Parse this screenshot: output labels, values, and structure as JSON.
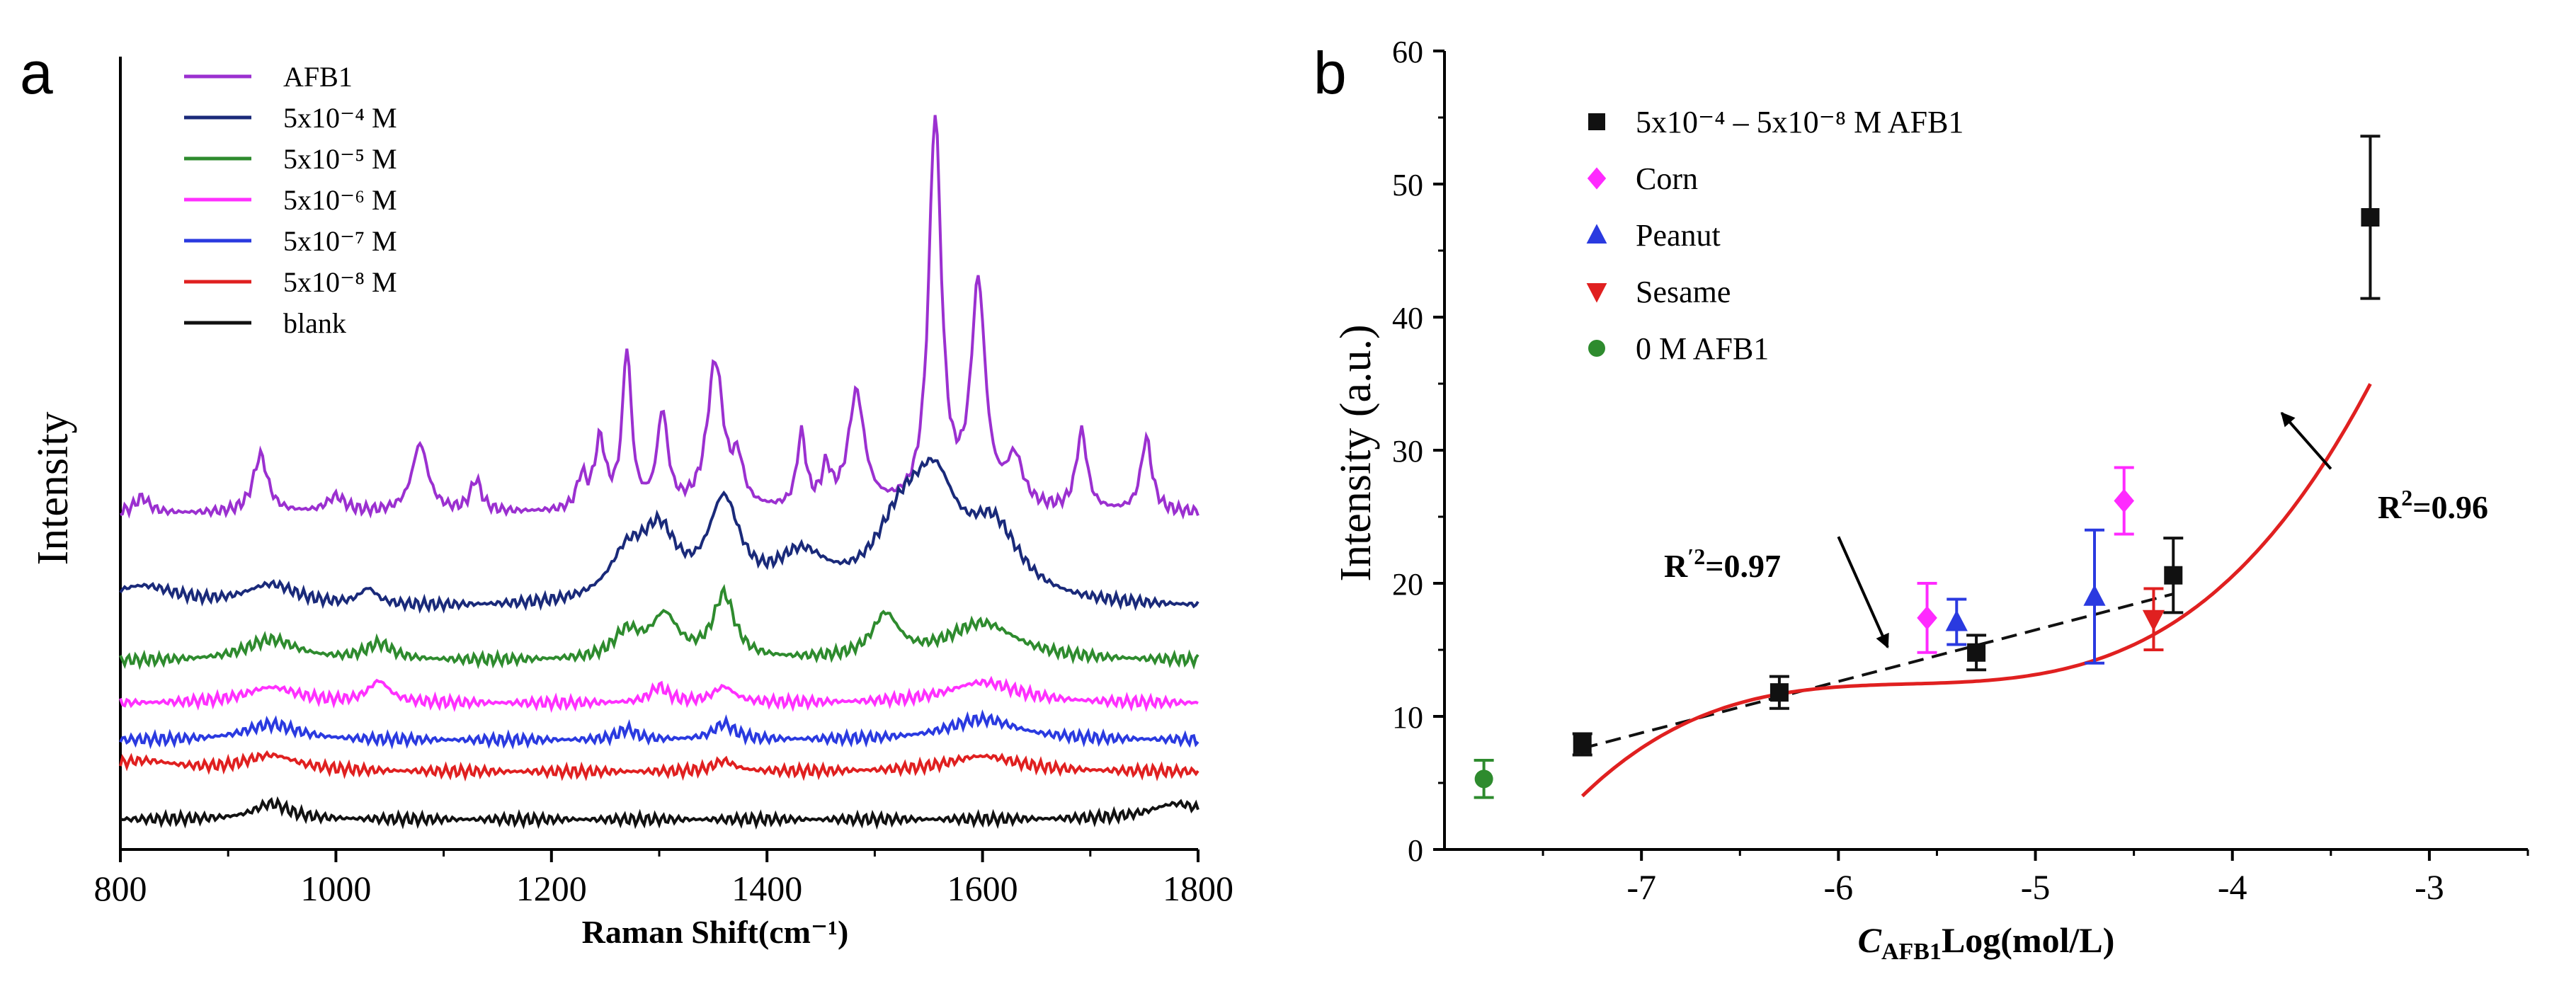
{
  "chart_data": [
    {
      "panel_label": "a",
      "type": "line",
      "title": "",
      "xlabel": "Raman Shift(cm⁻¹)",
      "ylabel": "Intensity",
      "xlim": [
        800,
        1800
      ],
      "xticks": [
        800,
        1000,
        1200,
        1400,
        1600,
        1800
      ],
      "grid": false,
      "legend_position": "top-left",
      "series": [
        {
          "name": "AFB1",
          "color": "#9b30d0",
          "baseline": 6.1,
          "scale": 1.0,
          "peaks": [
            [
              820,
              0.3,
              8
            ],
            [
              930,
              1.1,
              8
            ],
            [
              1000,
              0.3,
              10
            ],
            [
              1078,
              1.3,
              9
            ],
            [
              1130,
              0.6,
              6
            ],
            [
              1228,
              0.6,
              5
            ],
            [
              1245,
              1.3,
              6
            ],
            [
              1270,
              3.0,
              5
            ],
            [
              1303,
              1.8,
              6
            ],
            [
              1352,
              2.8,
              9
            ],
            [
              1373,
              0.8,
              6
            ],
            [
              1432,
              1.4,
              5
            ],
            [
              1455,
              0.7,
              5
            ],
            [
              1483,
              2.2,
              9
            ],
            [
              1556,
              7.4,
              7
            ],
            [
              1596,
              4.2,
              8
            ],
            [
              1630,
              0.9,
              9
            ],
            [
              1692,
              1.5,
              6
            ],
            [
              1752,
              1.4,
              6
            ]
          ]
        },
        {
          "name": "5x10⁻⁴ M",
          "color": "#1a2a7a",
          "baseline": 4.3,
          "scale": 1.0,
          "peaks": [
            [
              820,
              0.4,
              40
            ],
            [
              940,
              0.4,
              30
            ],
            [
              1030,
              0.3,
              10
            ],
            [
              1270,
              0.8,
              20
            ],
            [
              1300,
              1.2,
              20
            ],
            [
              1360,
              1.8,
              18
            ],
            [
              1432,
              0.8,
              30
            ],
            [
              1525,
              1.3,
              30
            ],
            [
              1556,
              1.8,
              25
            ],
            [
              1610,
              1.3,
              30
            ]
          ]
        },
        {
          "name": "5x10⁻⁵ M",
          "color": "#2e8b2e",
          "baseline": 3.3,
          "scale": 1.0,
          "peaks": [
            [
              940,
              0.4,
              30
            ],
            [
              1040,
              0.3,
              15
            ],
            [
              1270,
              0.5,
              15
            ],
            [
              1305,
              0.8,
              15
            ],
            [
              1360,
              1.2,
              12
            ],
            [
              1510,
              0.8,
              15
            ],
            [
              1600,
              0.7,
              40
            ]
          ]
        },
        {
          "name": "5x10⁻⁶ M",
          "color": "#ff30ff",
          "baseline": 2.5,
          "scale": 1.0,
          "peaks": [
            [
              940,
              0.3,
              30
            ],
            [
              1040,
              0.4,
              12
            ],
            [
              1300,
              0.3,
              10
            ],
            [
              1360,
              0.3,
              12
            ],
            [
              1600,
              0.4,
              40
            ]
          ]
        },
        {
          "name": "5x10⁻⁷ M",
          "color": "#2a3ae0",
          "baseline": 1.8,
          "scale": 1.0,
          "peaks": [
            [
              940,
              0.3,
              30
            ],
            [
              1270,
              0.2,
              10
            ],
            [
              1360,
              0.3,
              12
            ],
            [
              1600,
              0.4,
              40
            ]
          ]
        },
        {
          "name": "5x10⁻⁸ M",
          "color": "#e02020",
          "baseline": 1.2,
          "scale": 1.0,
          "peaks": [
            [
              820,
              0.2,
              40
            ],
            [
              940,
              0.3,
              30
            ],
            [
              1360,
              0.2,
              12
            ],
            [
              1600,
              0.3,
              40
            ]
          ]
        },
        {
          "name": "blank",
          "color": "#111111",
          "baseline": 0.3,
          "scale": 1.0,
          "peaks": [
            [
              940,
              0.3,
              20
            ],
            [
              1780,
              0.3,
              30
            ]
          ]
        }
      ]
    },
    {
      "panel_label": "b",
      "type": "scatter",
      "title": "",
      "xlabel_sub": "AFB1",
      "xlabel_main": "C",
      "xlabel_rest": "Log(mol/L)",
      "ylabel": "Intensity (a.u.)",
      "xlim": [
        -8.0,
        -2.5
      ],
      "ylim": [
        0,
        60
      ],
      "xticks": [
        -7,
        -6,
        -5,
        -4,
        -3
      ],
      "yticks": [
        0,
        10,
        20,
        30,
        40,
        50,
        60
      ],
      "grid": false,
      "legend_position": "top-left",
      "series": [
        {
          "name": "5x10⁻⁴ – 5x10⁻⁸ M AFB1",
          "marker": "square",
          "color": "#111111",
          "x": [
            -7.3,
            -6.3,
            -5.3,
            -4.3,
            -3.3
          ],
          "y": [
            7.9,
            11.8,
            14.8,
            20.6,
            47.5
          ],
          "err": [
            0.8,
            1.2,
            1.3,
            2.8,
            6.1
          ]
        },
        {
          "name": "Corn",
          "marker": "diamond",
          "color": "#ff2aff",
          "x": [
            -5.55,
            -4.55
          ],
          "y": [
            17.4,
            26.2
          ],
          "err": [
            2.6,
            2.5
          ]
        },
        {
          "name": "Peanut",
          "marker": "triangle-up",
          "color": "#2a3ae0",
          "x": [
            -5.4,
            -4.7
          ],
          "y": [
            17.1,
            19.0
          ],
          "err": [
            1.7,
            5.0
          ]
        },
        {
          "name": "Sesame",
          "marker": "triangle-down",
          "color": "#e02020",
          "x": [
            -4.4
          ],
          "y": [
            17.3
          ],
          "err": [
            2.3
          ]
        },
        {
          "name": "0 M AFB1",
          "marker": "circle",
          "color": "#2e8b2e",
          "x": [
            -7.8
          ],
          "y": [
            5.3
          ],
          "err": [
            1.4
          ]
        }
      ],
      "fits": [
        {
          "name": "dashed linear fit",
          "style": "dashed",
          "color": "#111111",
          "x": [
            -7.3,
            -4.3
          ],
          "y": [
            7.6,
            19.2
          ]
        },
        {
          "name": "cubic fit",
          "style": "solid",
          "color": "#e02020",
          "x0": -7.3,
          "x1": -3.3,
          "coeffs": [
            12.5,
            0.5,
            0.7,
            1.69
          ]
        }
      ],
      "annotations": [
        {
          "label_main": "R",
          "label_sup": "′2",
          "label_rest": "=0.97",
          "arrow_to": [
            -5.75,
            15.2
          ]
        },
        {
          "label_main": "R",
          "label_sup": "2",
          "label_rest": "=0.96",
          "arrow_to": [
            -3.75,
            32.8
          ]
        }
      ]
    }
  ]
}
